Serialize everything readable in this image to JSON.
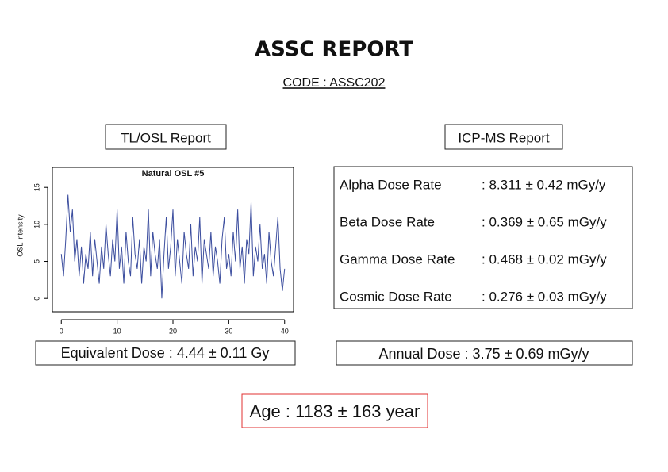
{
  "header": {
    "title": "ASSC REPORT",
    "code": "CODE : ASSC202"
  },
  "tl_osl": {
    "title": "TL/OSL Report"
  },
  "chart_data": {
    "type": "line",
    "title": "Natural OSL #5",
    "y_label": "OSL intensity",
    "color": "#3b4d9e",
    "x": [
      0,
      0.4,
      0.8,
      1.2,
      1.6,
      2,
      2.4,
      2.8,
      3.2,
      3.6,
      4,
      4.4,
      4.8,
      5.2,
      5.6,
      6,
      6.4,
      6.8,
      7.2,
      7.6,
      8,
      8.4,
      8.8,
      9.2,
      9.6,
      10,
      10.4,
      10.8,
      11.2,
      11.6,
      12,
      12.4,
      12.8,
      13.2,
      13.6,
      14,
      14.4,
      14.8,
      15.2,
      15.6,
      16,
      16.4,
      16.8,
      17.2,
      17.6,
      18,
      18.4,
      18.8,
      19.2,
      19.6,
      20,
      20.4,
      20.8,
      21.2,
      21.6,
      22,
      22.4,
      22.8,
      23.2,
      23.6,
      24,
      24.4,
      24.8,
      25.2,
      25.6,
      26,
      26.4,
      26.8,
      27.2,
      27.6,
      28,
      28.4,
      28.8,
      29.2,
      29.6,
      30,
      30.4,
      30.8,
      31.2,
      31.6,
      32,
      32.4,
      32.8,
      33.2,
      33.6,
      34,
      34.4,
      34.8,
      35.2,
      35.6,
      36,
      36.4,
      36.8,
      37.2,
      37.6,
      38,
      38.4,
      38.8,
      39.2,
      39.6,
      40
    ],
    "values": [
      6,
      3,
      8,
      14,
      9,
      12,
      5,
      8,
      3,
      7,
      2,
      6,
      4,
      9,
      3,
      8,
      5,
      2,
      7,
      4,
      10,
      6,
      3,
      8,
      5,
      12,
      4,
      7,
      2,
      9,
      5,
      3,
      11,
      6,
      4,
      8,
      2,
      7,
      5,
      12,
      3,
      9,
      6,
      4,
      8,
      0,
      6,
      11,
      4,
      7,
      12,
      3,
      8,
      5,
      2,
      9,
      6,
      4,
      10,
      3,
      7,
      5,
      11,
      2,
      8,
      6,
      4,
      9,
      3,
      7,
      5,
      2,
      8,
      11,
      4,
      6,
      3,
      9,
      5,
      12,
      4,
      7,
      2,
      8,
      6,
      13,
      3,
      7,
      5,
      10,
      4,
      6,
      2,
      9,
      5,
      3,
      7,
      11,
      4,
      1,
      4
    ],
    "xlim": [
      -1.6,
      41.6
    ],
    "ylim": [
      -1.8,
      17.7
    ],
    "xticks": [
      0,
      10,
      20,
      30,
      40
    ],
    "yticks": [
      0,
      5,
      10,
      15
    ]
  },
  "icp_ms": {
    "title": "ICP-MS Report",
    "rows": [
      {
        "label": "Alpha Dose Rate",
        "value": ": 8.311 ± 0.42 mGy/y"
      },
      {
        "label": "Beta Dose Rate",
        "value": ": 0.369 ± 0.65 mGy/y"
      },
      {
        "label": "Gamma Dose Rate",
        "value": ": 0.468 ± 0.02 mGy/y"
      },
      {
        "label": "Cosmic Dose Rate",
        "value": ": 0.276 ± 0.03 mGy/y"
      }
    ]
  },
  "equivalent_dose": "Equivalent Dose : 4.44 ± 0.11 Gy",
  "annual_dose": "Annual Dose : 3.75 ± 0.69 mGy/y",
  "age": "Age : 1183 ± 163 year"
}
